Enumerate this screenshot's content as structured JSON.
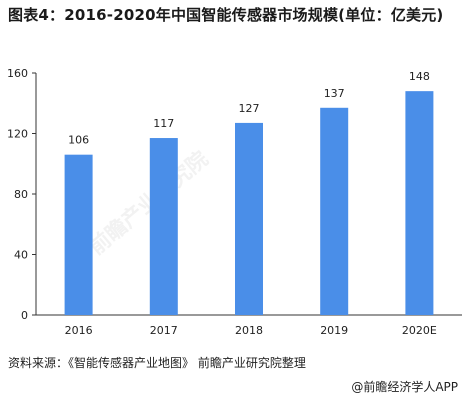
{
  "title": "图表4：2016-2020年中国智能传感器市场规模(单位：亿美元)",
  "source": "资料来源：《智能传感器产业地图》 前瞻产业研究院整理",
  "brand": "@前瞻经济学人APP",
  "watermark": "前瞻产业研究院",
  "colors": {
    "bar": "#4a8ee8",
    "axis": "#333333",
    "text": "#222222"
  },
  "chart_data": {
    "type": "bar",
    "title": "图表4：2016-2020年中国智能传感器市场规模(单位：亿美元)",
    "categories": [
      "2016",
      "2017",
      "2018",
      "2019",
      "2020E"
    ],
    "values": [
      106,
      117,
      127,
      137,
      148
    ],
    "value_labels": [
      "106",
      "117",
      "127",
      "137",
      "148"
    ],
    "y_ticks": [
      "0",
      "40",
      "80",
      "120",
      "160"
    ],
    "y_tick_values": [
      0,
      40,
      80,
      120,
      160
    ],
    "ylim": [
      0,
      160
    ],
    "xlabel": "",
    "ylabel": "",
    "grid": false,
    "legend": "none"
  }
}
